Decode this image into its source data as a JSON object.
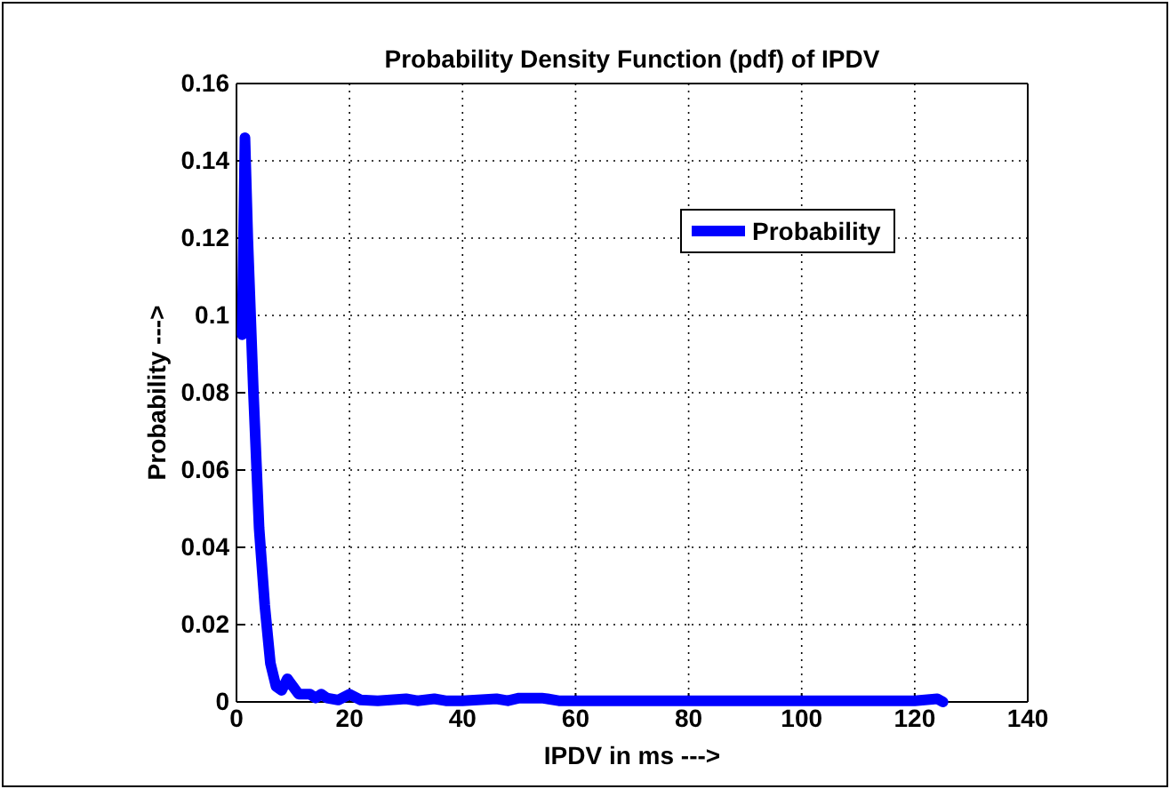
{
  "chart_data": {
    "type": "line",
    "title": "Probability Density Function (pdf) of IPDV",
    "xlabel": "IPDV in ms --->",
    "ylabel": "Probability --->",
    "xlim": [
      0,
      140
    ],
    "xticks": [
      0,
      20,
      40,
      60,
      80,
      100,
      120,
      140
    ],
    "ylim": [
      0,
      0.16
    ],
    "yticks": [
      0,
      0.02,
      0.04,
      0.06,
      0.08,
      0.1,
      0.12,
      0.14,
      0.16
    ],
    "grid": true,
    "legend": "top right",
    "marker": "none",
    "line_style": "solid",
    "series": [
      {
        "name": "Probability",
        "color": "#0000ff",
        "x": [
          1,
          1.5,
          2,
          3,
          4,
          5,
          6,
          7,
          8,
          9,
          10,
          11,
          12,
          13,
          14,
          15,
          16,
          18,
          20,
          22,
          25,
          30,
          32,
          35,
          37,
          40,
          46,
          48,
          50,
          52,
          54,
          55,
          57,
          60,
          80,
          100,
          120,
          124,
          125
        ],
        "values": [
          0.095,
          0.146,
          0.12,
          0.08,
          0.045,
          0.025,
          0.01,
          0.004,
          0.003,
          0.006,
          0.004,
          0.002,
          0.002,
          0.002,
          0.001,
          0.002,
          0.001,
          0.0005,
          0.002,
          0.0005,
          0.0003,
          0.0008,
          0.0003,
          0.0008,
          0.0003,
          0.0003,
          0.0008,
          0.0003,
          0.001,
          0.001,
          0.001,
          0.0008,
          0.0003,
          0.0003,
          0.0003,
          0.0003,
          0.0003,
          0.0008,
          0
        ]
      }
    ]
  }
}
